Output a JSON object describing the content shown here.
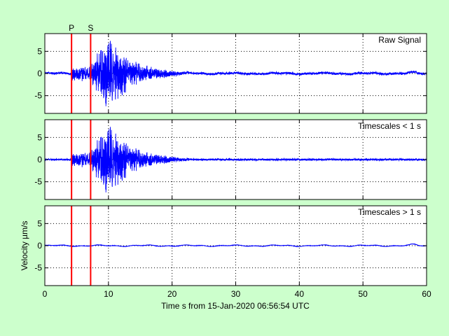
{
  "chart_data": {
    "type": "line",
    "xlabel": "Time s from 15-Jan-2020 06:56:54 UTC",
    "ylabel": "Velocity µm/s",
    "xlim": [
      0,
      60
    ],
    "xticks": [
      0,
      10,
      20,
      30,
      40,
      50,
      60
    ],
    "grid": true,
    "line_color": "#0000ff",
    "marker_color": "#ff0000",
    "phase_markers": [
      {
        "label": "P",
        "x": 4.2
      },
      {
        "label": "S",
        "x": 7.2
      }
    ],
    "panels": [
      {
        "label": "Raw Signal",
        "ylim": [
          -9,
          9
        ],
        "yticks": [
          -5,
          0,
          5
        ],
        "envelope": {
          "baseline_noise": 0.25,
          "p_arrival": 4.2,
          "p_coda_level": 1.8,
          "s_arrival": 7.2,
          "peak_time": 9.8,
          "peak_amplitude": 9.0,
          "decay_seconds": 4.0,
          "coda_level": 0.3,
          "drift_amplitude": 0.3
        }
      },
      {
        "label": "Timescales < 1 s",
        "ylim": [
          -9,
          9
        ],
        "yticks": [
          -5,
          0,
          5
        ],
        "envelope": {
          "baseline_noise": 0.2,
          "p_arrival": 4.2,
          "p_coda_level": 1.8,
          "s_arrival": 7.2,
          "peak_time": 9.8,
          "peak_amplitude": 9.0,
          "decay_seconds": 4.0,
          "coda_level": 0.25,
          "drift_amplitude": 0
        }
      },
      {
        "label": "Timescales > 1 s",
        "ylim": [
          -9,
          9
        ],
        "yticks": [
          -5,
          0,
          5
        ],
        "envelope": {
          "baseline_noise": 0.05,
          "p_arrival": 4.2,
          "p_coda_level": 0,
          "s_arrival": 7.2,
          "peak_time": 9.8,
          "peak_amplitude": 0,
          "decay_seconds": 4.0,
          "coda_level": 0,
          "drift_amplitude": 0.3
        }
      }
    ]
  }
}
